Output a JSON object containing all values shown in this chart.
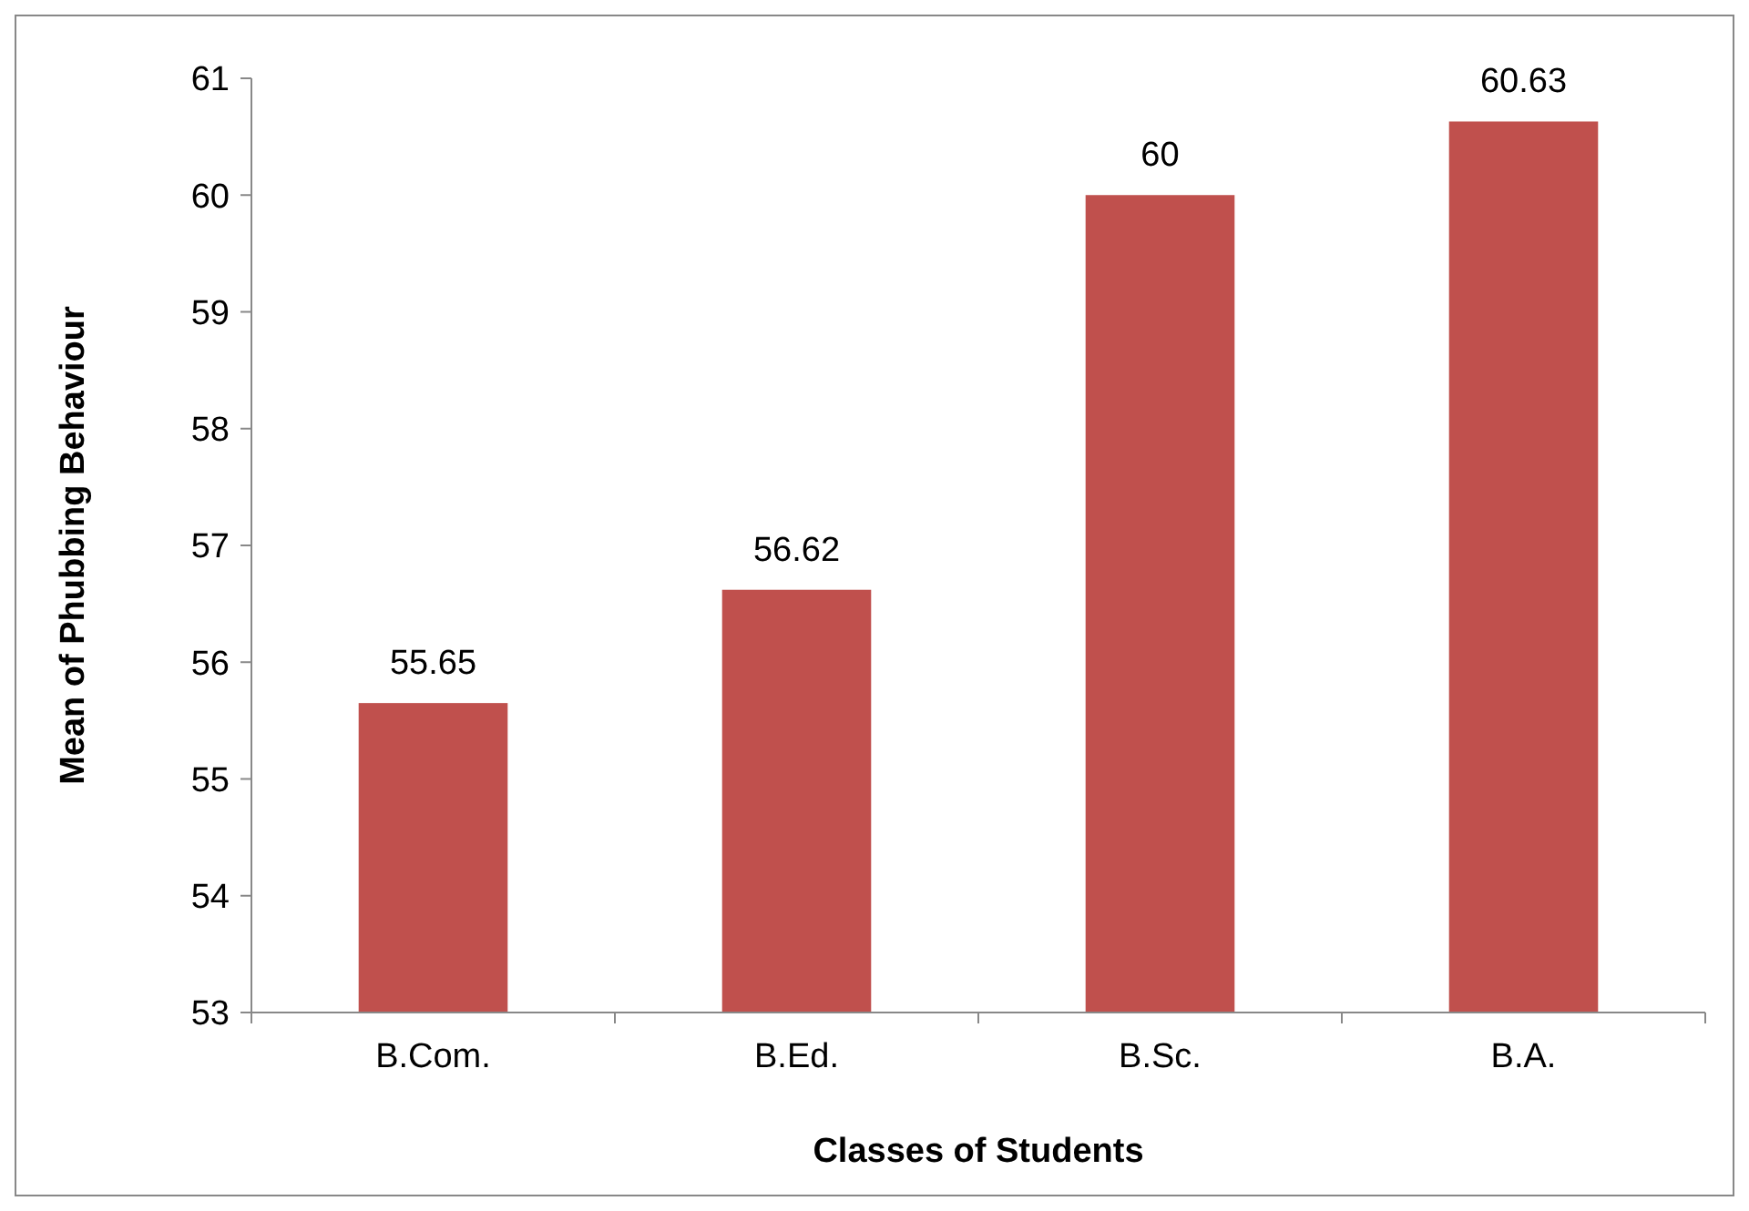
{
  "chart_data": {
    "type": "bar",
    "xlabel": "Classes of Students",
    "ylabel": "Mean of Phubbing Behaviour",
    "categories": [
      "B.Com.",
      "B.Ed.",
      "B.Sc.",
      "B.A."
    ],
    "values": [
      55.65,
      56.62,
      60,
      60.63
    ],
    "color": "#c0504d",
    "ylim": [
      53,
      61
    ],
    "yticks": [
      53,
      54,
      55,
      56,
      57,
      58,
      59,
      60,
      61
    ],
    "grid": false,
    "data_labels": true
  }
}
